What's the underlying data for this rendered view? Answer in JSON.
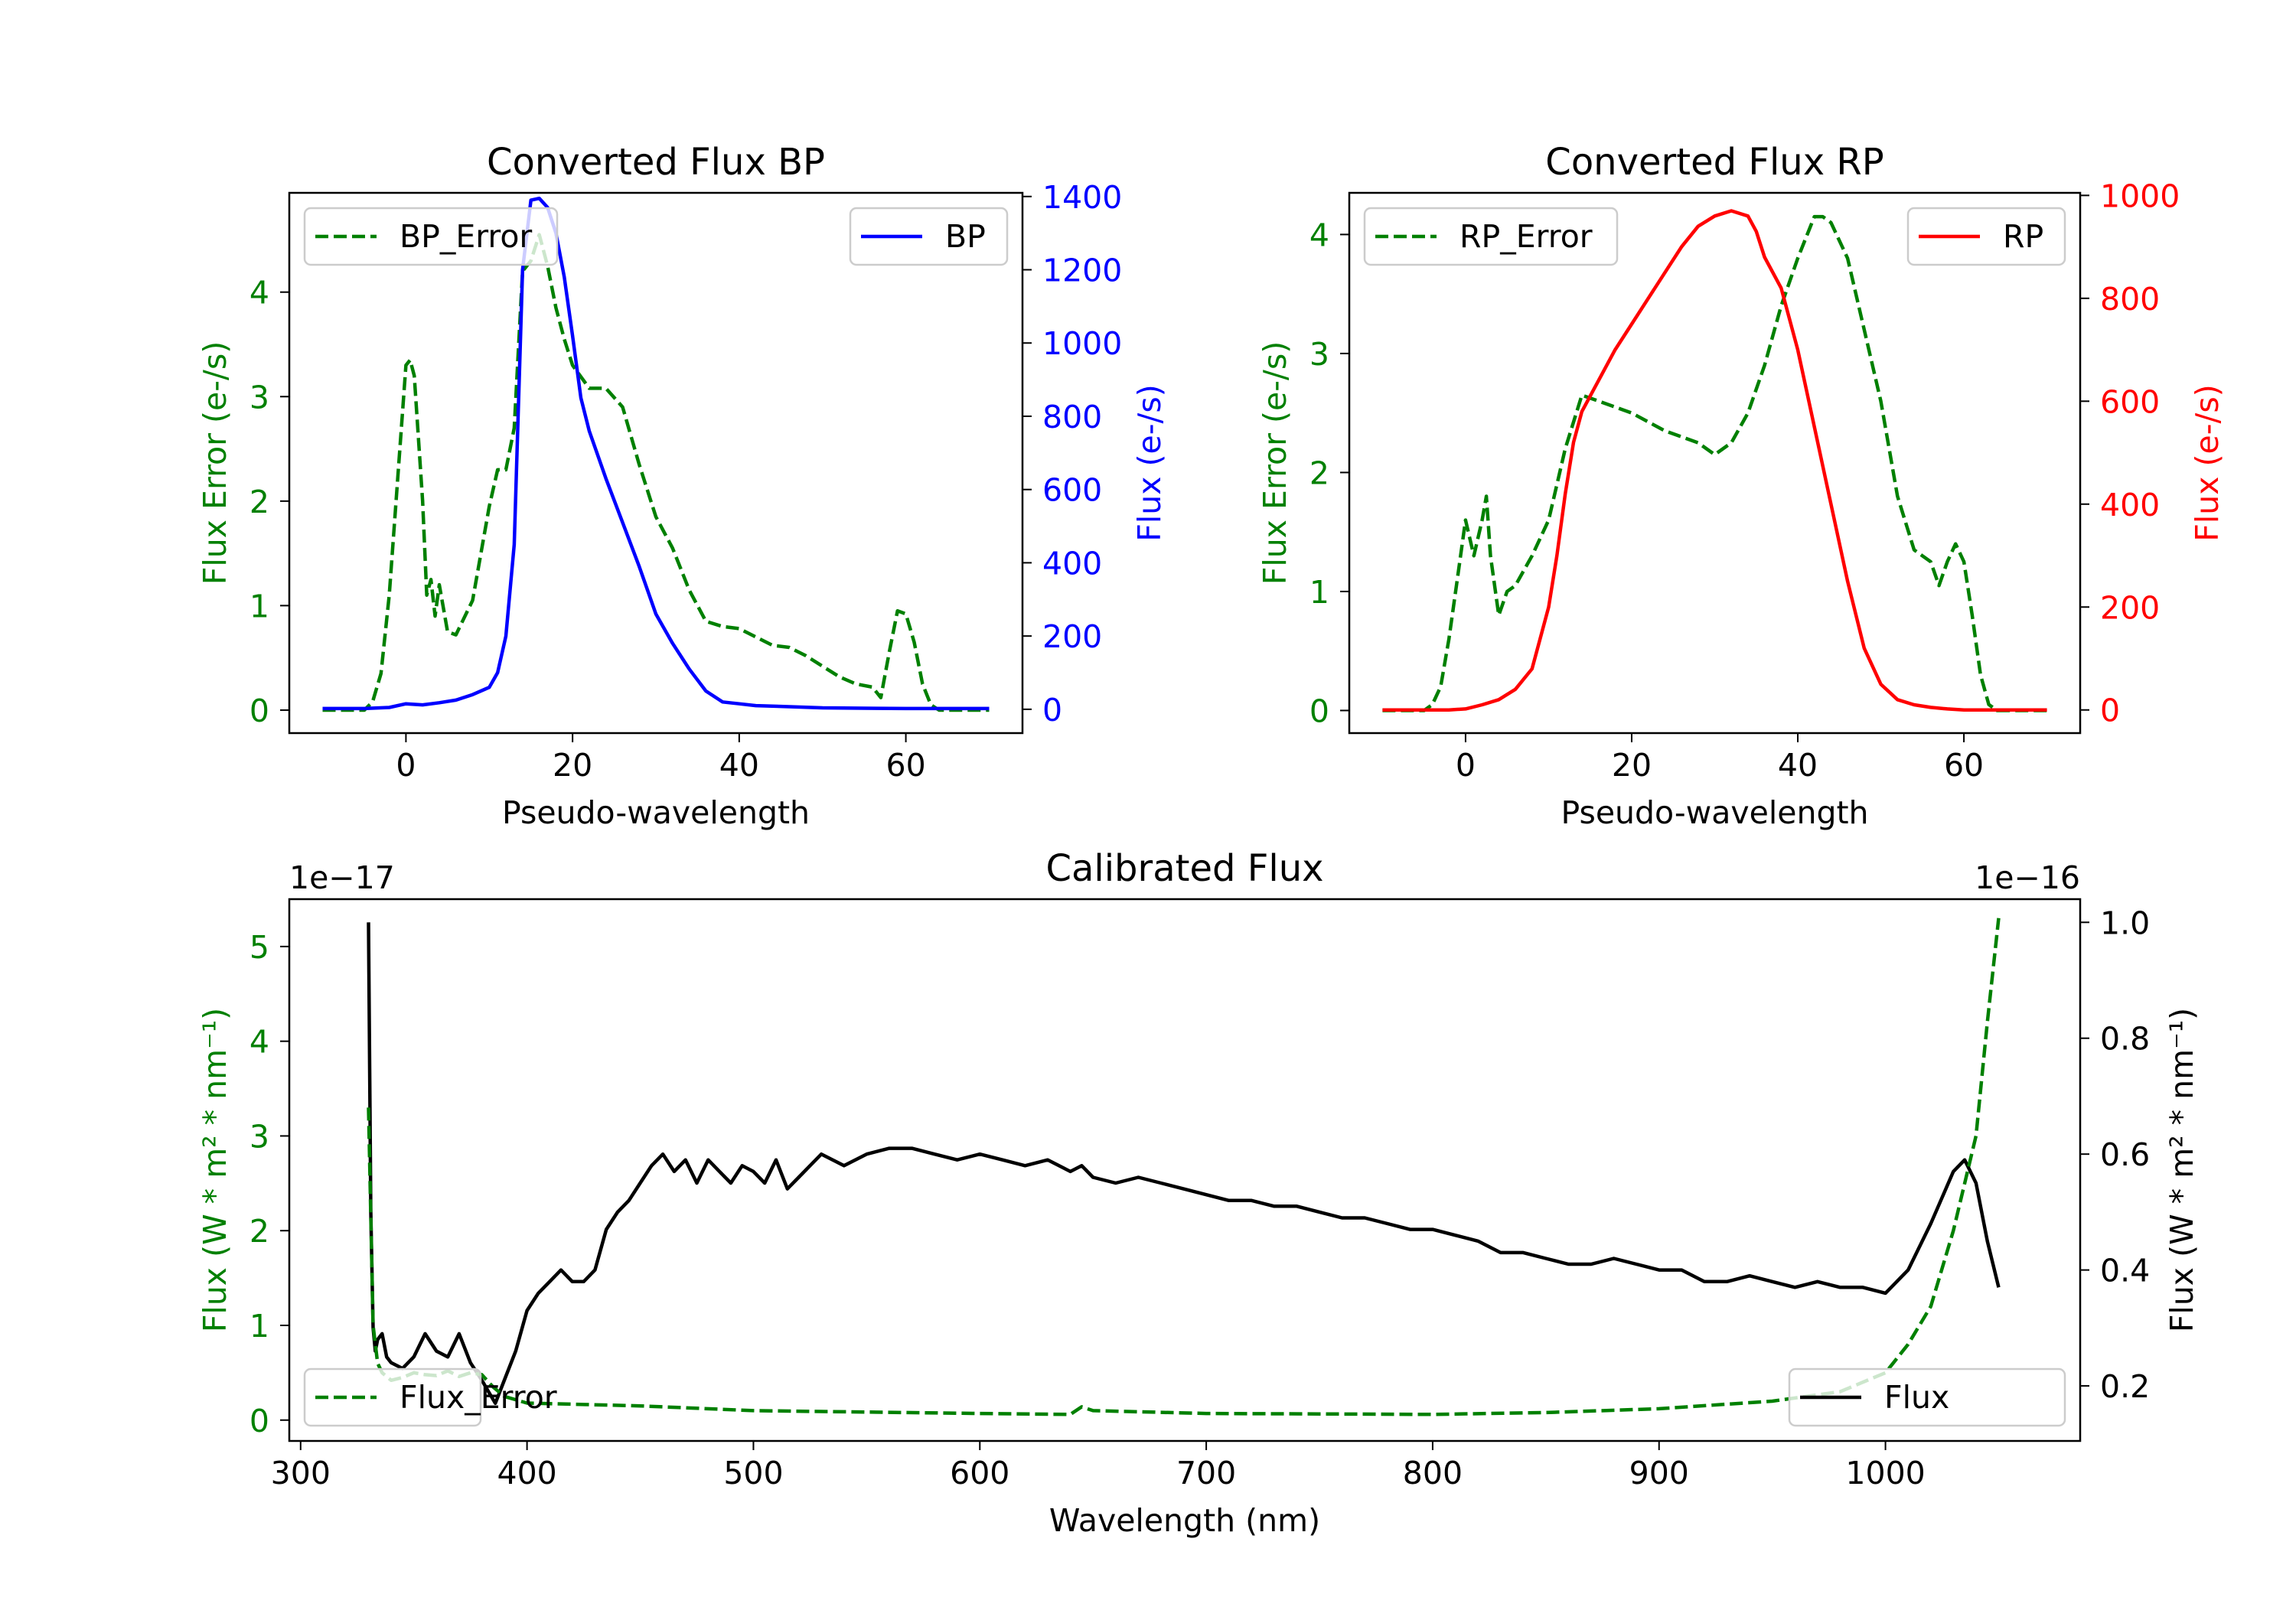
{
  "colors": {
    "green": "#008000",
    "blue": "#0000ff",
    "red": "#ff0000",
    "black": "#000000"
  },
  "chart_data": [
    {
      "type": "line",
      "title": "Converted Flux BP",
      "xlabel": "Pseudo-wavelength",
      "ylabel_left": "Flux Error (e-/s)",
      "ylabel_right": "Flux (e-/s)",
      "xlim": [
        -14,
        74
      ],
      "ylim_left": [
        -0.22,
        4.95
      ],
      "ylim_right": [
        -65,
        1410
      ],
      "xticks": [
        0,
        20,
        40,
        60
      ],
      "yticks_left": [
        0,
        1,
        2,
        3,
        4
      ],
      "yticks_right": [
        0,
        200,
        400,
        600,
        800,
        1000,
        1200,
        1400
      ],
      "legend_left": "top-left",
      "legend_right": "top-right",
      "series": [
        {
          "name": "BP_Error",
          "axis": "left",
          "color": "green",
          "style": "dashed",
          "x": [
            -10,
            -5,
            -4,
            -3,
            -2,
            -1,
            0,
            0.5,
            1,
            2,
            2.5,
            3,
            3.5,
            4,
            5,
            6,
            8,
            10,
            11,
            12,
            13,
            14,
            15,
            16,
            17,
            18,
            19,
            20,
            22,
            24,
            26,
            28,
            30,
            32,
            34,
            36,
            38,
            40,
            42,
            44,
            46,
            48,
            50,
            52,
            54,
            56,
            57,
            58,
            59,
            60,
            61,
            62,
            63,
            64,
            65,
            70
          ],
          "y": [
            0,
            0,
            0.08,
            0.35,
            1.1,
            2.2,
            3.3,
            3.35,
            3.2,
            2.0,
            1.1,
            1.25,
            0.9,
            1.2,
            0.75,
            0.72,
            1.05,
            1.95,
            2.3,
            2.3,
            2.7,
            4.2,
            4.3,
            4.55,
            4.25,
            3.85,
            3.55,
            3.3,
            3.08,
            3.08,
            2.9,
            2.35,
            1.85,
            1.55,
            1.15,
            0.85,
            0.8,
            0.78,
            0.7,
            0.62,
            0.6,
            0.52,
            0.42,
            0.32,
            0.25,
            0.22,
            0.12,
            0.55,
            0.95,
            0.92,
            0.65,
            0.25,
            0.05,
            0,
            0,
            0
          ]
        },
        {
          "name": "BP",
          "axis": "right",
          "color": "blue",
          "style": "solid",
          "x": [
            -10,
            -5,
            -2,
            0,
            2,
            4,
            6,
            8,
            10,
            11,
            12,
            13,
            14,
            15,
            16,
            17,
            18,
            19,
            20,
            21,
            22,
            24,
            26,
            28,
            30,
            32,
            34,
            36,
            38,
            40,
            42,
            45,
            50,
            55,
            60,
            65,
            70
          ],
          "y": [
            2,
            2,
            5,
            15,
            12,
            18,
            25,
            40,
            60,
            100,
            200,
            450,
            1200,
            1390,
            1395,
            1370,
            1300,
            1180,
            1020,
            850,
            760,
            630,
            510,
            390,
            260,
            180,
            110,
            50,
            20,
            15,
            10,
            8,
            4,
            3,
            2,
            2,
            2
          ]
        }
      ]
    },
    {
      "type": "line",
      "title": "Converted Flux RP",
      "xlabel": "Pseudo-wavelength",
      "ylabel_left": "Flux Error (e-/s)",
      "ylabel_right": "Flux (e-/s)",
      "xlim": [
        -14,
        74
      ],
      "ylim_left": [
        -0.19,
        4.35
      ],
      "ylim_right": [
        -45,
        1005
      ],
      "xticks": [
        0,
        20,
        40,
        60
      ],
      "yticks_left": [
        0,
        1,
        2,
        3,
        4
      ],
      "yticks_right": [
        0,
        200,
        400,
        600,
        800,
        1000
      ],
      "legend_left": "top-left",
      "legend_right": "top-right",
      "series": [
        {
          "name": "RP_Error",
          "axis": "left",
          "color": "green",
          "style": "dashed",
          "x": [
            -10,
            -5,
            -4,
            -3,
            -2,
            -1,
            0,
            1,
            2,
            2.5,
            3,
            4,
            5,
            6,
            8,
            10,
            12,
            14,
            16,
            20,
            24,
            28,
            30,
            32,
            34,
            36,
            38,
            40,
            42,
            43,
            44,
            46,
            48,
            50,
            52,
            54,
            56,
            57,
            58,
            59,
            60,
            61,
            62,
            63,
            64,
            65,
            70
          ],
          "y": [
            0,
            0,
            0.05,
            0.2,
            0.6,
            1.1,
            1.6,
            1.3,
            1.6,
            1.8,
            1.3,
            0.8,
            1.0,
            1.05,
            1.3,
            1.6,
            2.2,
            2.65,
            2.6,
            2.5,
            2.35,
            2.25,
            2.15,
            2.25,
            2.5,
            2.9,
            3.4,
            3.8,
            4.15,
            4.15,
            4.1,
            3.8,
            3.2,
            2.6,
            1.8,
            1.35,
            1.25,
            1.05,
            1.25,
            1.4,
            1.25,
            0.8,
            0.3,
            0.05,
            0,
            0,
            0
          ]
        },
        {
          "name": "RP",
          "axis": "right",
          "color": "red",
          "style": "solid",
          "x": [
            -10,
            -5,
            -2,
            0,
            2,
            4,
            6,
            8,
            10,
            11,
            12,
            13,
            14,
            16,
            18,
            20,
            22,
            24,
            26,
            28,
            30,
            32,
            34,
            35,
            36,
            38,
            40,
            42,
            44,
            46,
            48,
            50,
            52,
            54,
            56,
            58,
            60,
            65,
            70
          ],
          "y": [
            0,
            0,
            0,
            2,
            10,
            20,
            40,
            80,
            200,
            300,
            420,
            520,
            580,
            640,
            700,
            750,
            800,
            850,
            900,
            940,
            960,
            970,
            960,
            930,
            880,
            820,
            700,
            550,
            400,
            250,
            120,
            50,
            20,
            10,
            5,
            2,
            0,
            0,
            0
          ]
        }
      ]
    },
    {
      "type": "line",
      "title": "Calibrated Flux",
      "xlabel": "Wavelength (nm)",
      "ylabel_left": "Flux (W * m² * nm⁻¹)",
      "ylabel_right": "Flux (W * m² * nm⁻¹)",
      "offset_left": "1e−17",
      "offset_right": "1e−16",
      "xlim": [
        295,
        1086
      ],
      "ylim_left": [
        -0.22,
        5.5
      ],
      "ylim_right": [
        0.105,
        1.04
      ],
      "xticks": [
        300,
        400,
        500,
        600,
        700,
        800,
        900,
        1000
      ],
      "yticks_left": [
        0,
        1,
        2,
        3,
        4,
        5
      ],
      "yticks_right": [
        0.2,
        0.4,
        0.6,
        0.8,
        1.0
      ],
      "legend_left": "bottom-left",
      "legend_right": "bottom-right",
      "series": [
        {
          "name": "Flux",
          "axis": "right",
          "color": "black",
          "style": "solid",
          "x": [
            330,
            331,
            332,
            333,
            334,
            336,
            338,
            340,
            345,
            350,
            355,
            360,
            365,
            370,
            375,
            380,
            383,
            386,
            390,
            395,
            400,
            405,
            410,
            415,
            420,
            425,
            430,
            435,
            440,
            445,
            450,
            455,
            460,
            465,
            470,
            475,
            480,
            485,
            490,
            495,
            500,
            505,
            510,
            515,
            520,
            525,
            530,
            535,
            540,
            545,
            550,
            560,
            570,
            580,
            590,
            600,
            610,
            620,
            630,
            640,
            645,
            650,
            660,
            670,
            680,
            690,
            700,
            710,
            720,
            730,
            740,
            750,
            760,
            770,
            780,
            790,
            800,
            810,
            820,
            830,
            840,
            850,
            860,
            870,
            880,
            890,
            900,
            910,
            920,
            930,
            940,
            950,
            960,
            970,
            980,
            990,
            1000,
            1010,
            1020,
            1030,
            1035,
            1040,
            1045,
            1050
          ],
          "y": [
            1.0,
            0.5,
            0.3,
            0.26,
            0.28,
            0.29,
            0.25,
            0.24,
            0.23,
            0.25,
            0.29,
            0.26,
            0.25,
            0.29,
            0.24,
            0.21,
            0.19,
            0.17,
            0.21,
            0.26,
            0.33,
            0.36,
            0.38,
            0.4,
            0.38,
            0.38,
            0.4,
            0.47,
            0.5,
            0.52,
            0.55,
            0.58,
            0.6,
            0.57,
            0.59,
            0.55,
            0.59,
            0.57,
            0.55,
            0.58,
            0.57,
            0.55,
            0.59,
            0.54,
            0.56,
            0.58,
            0.6,
            0.59,
            0.58,
            0.59,
            0.6,
            0.61,
            0.61,
            0.6,
            0.59,
            0.6,
            0.59,
            0.58,
            0.59,
            0.57,
            0.58,
            0.56,
            0.55,
            0.56,
            0.55,
            0.54,
            0.53,
            0.52,
            0.52,
            0.51,
            0.51,
            0.5,
            0.49,
            0.49,
            0.48,
            0.47,
            0.47,
            0.46,
            0.45,
            0.43,
            0.43,
            0.42,
            0.41,
            0.41,
            0.42,
            0.41,
            0.4,
            0.4,
            0.38,
            0.38,
            0.39,
            0.38,
            0.37,
            0.38,
            0.37,
            0.37,
            0.36,
            0.4,
            0.48,
            0.57,
            0.59,
            0.55,
            0.45,
            0.37
          ]
        },
        {
          "name": "Flux_Error",
          "axis": "left",
          "color": "green",
          "style": "dashed",
          "x": [
            330,
            332,
            334,
            336,
            340,
            345,
            350,
            355,
            360,
            365,
            370,
            375,
            380,
            385,
            390,
            400,
            450,
            500,
            600,
            640,
            645,
            650,
            700,
            800,
            850,
            900,
            950,
            980,
            1000,
            1010,
            1020,
            1030,
            1040,
            1045,
            1050
          ],
          "y": [
            3.3,
            1.0,
            0.6,
            0.5,
            0.42,
            0.45,
            0.5,
            0.48,
            0.47,
            0.52,
            0.46,
            0.5,
            0.48,
            0.35,
            0.25,
            0.18,
            0.15,
            0.1,
            0.07,
            0.06,
            0.14,
            0.1,
            0.07,
            0.06,
            0.08,
            0.12,
            0.2,
            0.3,
            0.5,
            0.8,
            1.2,
            2.0,
            3.0,
            4.2,
            5.3
          ]
        }
      ]
    }
  ]
}
